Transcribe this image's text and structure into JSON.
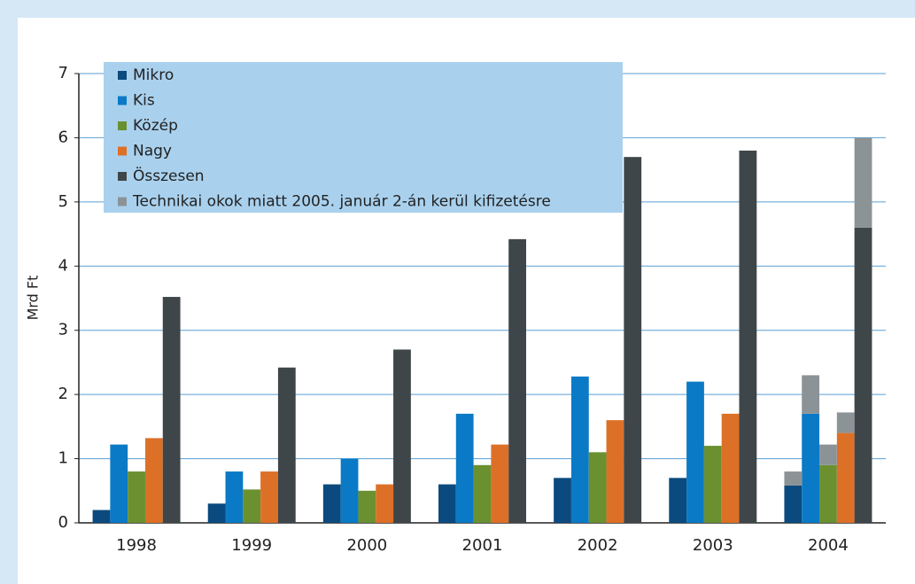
{
  "chart_data": {
    "type": "bar",
    "ylabel": "Mrd Ft",
    "categories": [
      "1998",
      "1999",
      "2000",
      "2001",
      "2002",
      "2003",
      "2004"
    ],
    "ylim": [
      0,
      7
    ],
    "yticks": [
      0,
      1,
      2,
      3,
      4,
      5,
      6,
      7
    ],
    "grid": true,
    "legend": "upper left",
    "series": [
      {
        "name": "Mikro",
        "color": "#0b4a7e",
        "values": [
          0.2,
          0.3,
          0.6,
          0.6,
          0.7,
          0.7,
          0.58
        ]
      },
      {
        "name": "Kis",
        "color": "#0a7ac6",
        "values": [
          1.22,
          0.8,
          1.0,
          1.7,
          2.28,
          2.2,
          1.7
        ]
      },
      {
        "name": "Közép",
        "color": "#6a9030",
        "values": [
          0.8,
          0.52,
          0.5,
          0.9,
          1.1,
          1.2,
          0.9
        ]
      },
      {
        "name": "Nagy",
        "color": "#dd7027",
        "values": [
          1.32,
          0.8,
          0.6,
          1.22,
          1.6,
          1.7,
          1.4
        ]
      },
      {
        "name": "Összesen",
        "color": "#3f4649",
        "values": [
          3.52,
          2.42,
          2.7,
          4.42,
          5.7,
          5.8,
          4.6
        ]
      },
      {
        "name": "Technikai okok miatt 2005.  január 2-án kerül kifizetésre",
        "color": "#8c9397",
        "stacked": true,
        "values": [
          null,
          null,
          null,
          null,
          null,
          null,
          [
            0.22,
            0.6,
            0.32,
            0.32,
            1.4
          ]
        ]
      }
    ]
  }
}
